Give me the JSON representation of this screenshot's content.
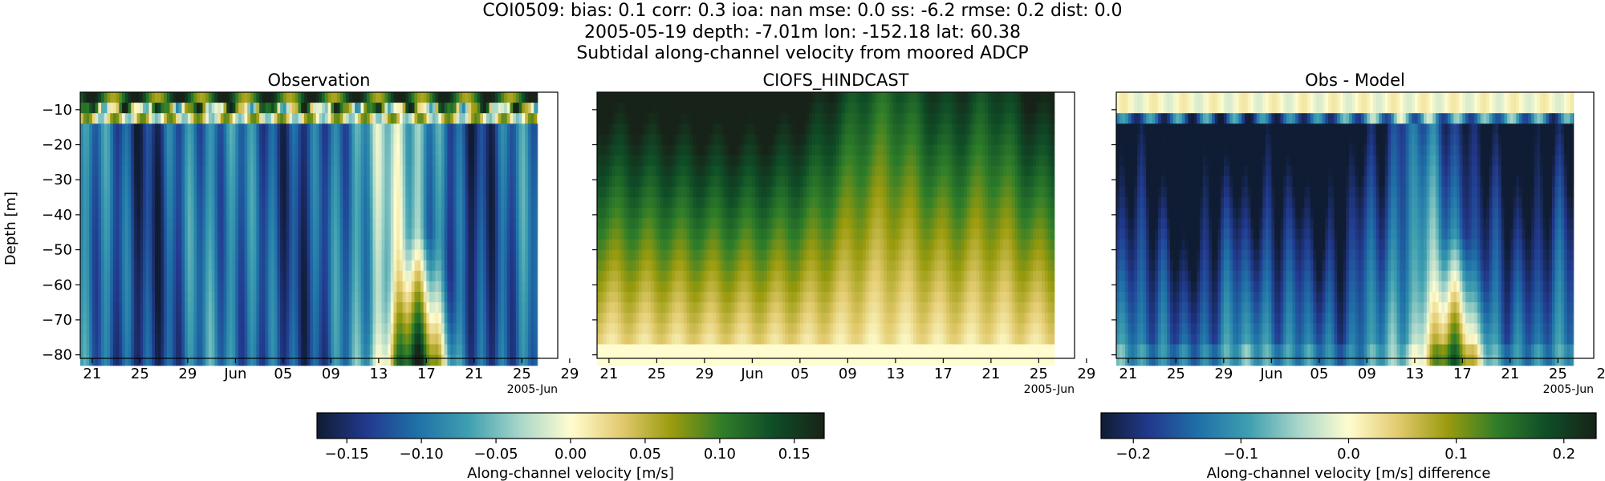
{
  "header": {
    "line1": "COI0509: bias: 0.1  corr: 0.3  ioa: nan  mse: 0.0  ss: -6.2  rmse: 0.2  dist: 0.0",
    "line2": "2005-05-19 depth: -7.01m lon: -152.18 lat: 60.38",
    "line3": "Subtidal along-channel velocity from moored ADCP"
  },
  "chart_data": [
    {
      "type": "heatmap",
      "title": "Observation",
      "ylabel": "Depth [m]",
      "xlabel": "",
      "x_tick_labels": [
        "21",
        "25",
        "29",
        "Jun",
        "05",
        "09",
        "13",
        "17",
        "21",
        "25",
        "29"
      ],
      "x_offset_label": "2005-Jun",
      "xlim": [
        "2005-05-20",
        "2005-06-29"
      ],
      "data_x_range": [
        "2005-05-20",
        "2005-06-27"
      ],
      "y_tick_values": [
        -10,
        -20,
        -30,
        -40,
        -50,
        -60,
        -70,
        -80
      ],
      "ylim": [
        -81,
        -5
      ],
      "colormap": "delta",
      "color_range": [
        -0.17,
        0.17
      ],
      "pattern": "mostly negative (blue/teal) vertical bands with thin yellow streaks; positive yellow-green rows near surface; strong positive (yellow to green) tongue at depth around Jun 15-19"
    },
    {
      "type": "heatmap",
      "title": "CIOFS_HINDCAST",
      "x_tick_labels": [
        "21",
        "25",
        "29",
        "Jun",
        "05",
        "09",
        "13",
        "17",
        "21",
        "25",
        "29"
      ],
      "x_offset_label": "2005-Jun",
      "xlim": [
        "2005-05-20",
        "2005-06-29"
      ],
      "data_x_range": [
        "2005-05-20",
        "2005-06-27"
      ],
      "y_tick_values": [
        -10,
        -20,
        -30,
        -40,
        -50,
        -60,
        -70,
        -80
      ],
      "ylim": [
        -81,
        -5
      ],
      "colormap": "delta",
      "color_range": [
        -0.17,
        0.17
      ],
      "pattern": "positive everywhere: dark green near surface fading to pale yellow near bottom, with weaker bands around Jun 09-17"
    },
    {
      "type": "heatmap",
      "title": "Obs - Model",
      "x_tick_labels": [
        "21",
        "25",
        "29",
        "Jun",
        "05",
        "09",
        "13",
        "17",
        "21",
        "25",
        "29"
      ],
      "x_offset_label": "2005-Jun",
      "xlim": [
        "2005-05-20",
        "2005-06-29"
      ],
      "data_x_range": [
        "2005-05-20",
        "2005-06-27"
      ],
      "y_tick_values": [
        -10,
        -20,
        -30,
        -40,
        -50,
        -60,
        -70,
        -80
      ],
      "ylim": [
        -81,
        -5
      ],
      "colormap": "delta",
      "color_range": [
        -0.23,
        0.23
      ],
      "pattern": "mostly negative (dark blue) below -12 m, strongest around May 24-26, Jun 06-08 and Jun 21-23; near-zero to positive at surface rows and near Jun 17-19 at depth"
    }
  ],
  "colorbars": [
    {
      "label": "Along-channel velocity [m/s]",
      "range": [
        -0.17,
        0.17
      ],
      "tick_labels": [
        "−0.15",
        "−0.10",
        "−0.05",
        "0.00",
        "0.05",
        "0.10",
        "0.15"
      ],
      "tick_values": [
        -0.15,
        -0.1,
        -0.05,
        0.0,
        0.05,
        0.1,
        0.15
      ]
    },
    {
      "label": "Along-channel velocity [m/s] difference",
      "range": [
        -0.23,
        0.23
      ],
      "tick_labels": [
        "−0.2",
        "−0.1",
        "0.0",
        "0.1",
        "0.2"
      ],
      "tick_values": [
        -0.2,
        -0.1,
        0.0,
        0.1,
        0.2
      ]
    }
  ],
  "colors": {
    "colormap_stops": [
      "#0f1c33",
      "#223a8f",
      "#1f72a8",
      "#3fa0b0",
      "#a8d6c9",
      "#fffdd0",
      "#e2ca6e",
      "#9a9b0e",
      "#2f7d29",
      "#0f4d27",
      "#172318"
    ]
  }
}
